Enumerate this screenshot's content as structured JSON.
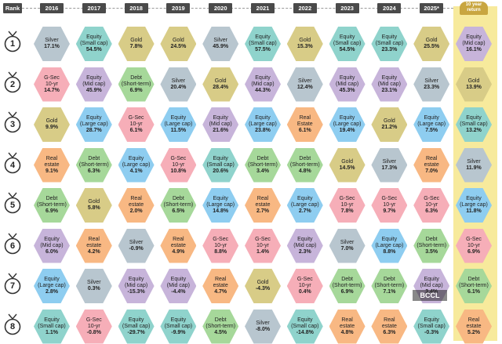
{
  "chart_data": {
    "type": "table",
    "header": {
      "rank_label": "Rank",
      "years": [
        "2016",
        "2017",
        "2018",
        "2019",
        "2020",
        "2021",
        "2022",
        "2023",
        "2024",
        "2025*"
      ],
      "last_label": "10 year return"
    },
    "ranks": [
      "1",
      "2",
      "3",
      "4",
      "5",
      "6",
      "7",
      "8"
    ],
    "colors": {
      "Silver": "#b8c6cf",
      "Equity (Small cap)": "#8fd3cc",
      "Gold": "#d8cc87",
      "G-Sec 10-yr": "#f6aeb8",
      "Equity (Mid cap)": "#c7b4da",
      "Debt (Short-term)": "#a6d89a",
      "Equity (Large cap)": "#8ecdf0",
      "Real estate": "#f8b883"
    },
    "grid": [
      [
        {
          "asset": "Silver",
          "value": "17.1%"
        },
        {
          "asset": "Equity\n(Small cap)",
          "key": "Equity (Small cap)",
          "value": "54.5%"
        },
        {
          "asset": "Gold",
          "value": "7.8%"
        },
        {
          "asset": "Gold",
          "value": "24.5%"
        },
        {
          "asset": "Silver",
          "value": "45.9%"
        },
        {
          "asset": "Equity\n(Small cap)",
          "key": "Equity (Small cap)",
          "value": "57.5%"
        },
        {
          "asset": "Gold",
          "value": "15.3%"
        },
        {
          "asset": "Equity\n(Small cap)",
          "key": "Equity (Small cap)",
          "value": "54.5%"
        },
        {
          "asset": "Equity\n(Small cap)",
          "key": "Equity (Small cap)",
          "value": "23.3%"
        },
        {
          "asset": "Gold",
          "value": "25.5%"
        },
        {
          "asset": "Equity\n(Mid cap)",
          "key": "Equity (Mid cap)",
          "value": "16.1%"
        }
      ],
      [
        {
          "asset": "G-Sec\n10-yr",
          "key": "G-Sec 10-yr",
          "value": "14.7%"
        },
        {
          "asset": "Equity\n(Mid cap)",
          "key": "Equity (Mid cap)",
          "value": "45.9%"
        },
        {
          "asset": "Debt\n(Short-term)",
          "key": "Debt (Short-term)",
          "value": "6.9%"
        },
        {
          "asset": "Silver",
          "value": "20.4%"
        },
        {
          "asset": "Gold",
          "value": "28.4%"
        },
        {
          "asset": "Equity\n(Mid cap)",
          "key": "Equity (Mid cap)",
          "value": "44.3%"
        },
        {
          "asset": "Silver",
          "value": "12.4%"
        },
        {
          "asset": "Equity\n(Mid cap)",
          "key": "Equity (Mid cap)",
          "value": "45.3%"
        },
        {
          "asset": "Equity\n(Mid cap)",
          "key": "Equity (Mid cap)",
          "value": "23.1%"
        },
        {
          "asset": "Silver",
          "value": "23.3%"
        },
        {
          "asset": "Gold",
          "value": "13.9%"
        }
      ],
      [
        {
          "asset": "Gold",
          "value": "9.9%"
        },
        {
          "asset": "Equity\n(Large cap)",
          "key": "Equity (Large cap)",
          "value": "28.7%"
        },
        {
          "asset": "G-Sec\n10-yr",
          "key": "G-Sec 10-yr",
          "value": "6.1%"
        },
        {
          "asset": "Equity\n(Large cap)",
          "key": "Equity (Large cap)",
          "value": "11.5%"
        },
        {
          "asset": "Equity\n(Mid cap)",
          "key": "Equity (Mid cap)",
          "value": "21.6%"
        },
        {
          "asset": "Equity\n(Large cap)",
          "key": "Equity (Large cap)",
          "value": "23.8%"
        },
        {
          "asset": "Real\nEstate",
          "key": "Real estate",
          "value": "6.1%"
        },
        {
          "asset": "Equity\n(Large cap)",
          "key": "Equity (Large cap)",
          "value": "19.4%"
        },
        {
          "asset": "Gold",
          "value": "21.2%"
        },
        {
          "asset": "Equity\n(Large cap)",
          "key": "Equity (Large cap)",
          "value": "7.5%"
        },
        {
          "asset": "Equity\n(Small cap)",
          "key": "Equity (Small cap)",
          "value": "13.2%"
        }
      ],
      [
        {
          "asset": "Real\nestate",
          "key": "Real estate",
          "value": "9.1%"
        },
        {
          "asset": "Debt\n(Short-term)",
          "key": "Debt (Short-term)",
          "value": "6.3%"
        },
        {
          "asset": "Equity\n(Large cap)",
          "key": "Equity (Large cap)",
          "value": "4.1%"
        },
        {
          "asset": "G-Sec\n10-yr",
          "key": "G-Sec 10-yr",
          "value": "10.8%"
        },
        {
          "asset": "Equity\n(Small cap)",
          "key": "Equity (Small cap)",
          "value": "20.6%"
        },
        {
          "asset": "Debt\n(Short-term)",
          "key": "Debt (Short-term)",
          "value": "3.4%"
        },
        {
          "asset": "Debt\n(Short-term)",
          "key": "Debt (Short-term)",
          "value": "4.8%"
        },
        {
          "asset": "Gold",
          "value": "14.5%"
        },
        {
          "asset": "Silver",
          "value": "17.3%"
        },
        {
          "asset": "Real\nestate",
          "key": "Real estate",
          "value": "7.0%"
        },
        {
          "asset": "Silver",
          "value": "11.9%"
        }
      ],
      [
        {
          "asset": "Debt\n(Short-term)",
          "key": "Debt (Short-term)",
          "value": "6.9%"
        },
        {
          "asset": "Gold",
          "value": "5.8%"
        },
        {
          "asset": "Real\nestate",
          "key": "Real estate",
          "value": "2.0%"
        },
        {
          "asset": "Debt\n(Short-term)",
          "key": "Debt (Short-term)",
          "value": "6.5%"
        },
        {
          "asset": "Equity\n(Large cap)",
          "key": "Equity (Large cap)",
          "value": "14.8%"
        },
        {
          "asset": "Real\nestate",
          "key": "Real estate",
          "value": "2.7%"
        },
        {
          "asset": "Equity\n(Large cap)",
          "key": "Equity (Large cap)",
          "value": "2.7%"
        },
        {
          "asset": "G-Sec\n10-yr",
          "key": "G-Sec 10-yr",
          "value": "7.8%"
        },
        {
          "asset": "G-Sec\n10-yr",
          "key": "G-Sec 10-yr",
          "value": "9.7%"
        },
        {
          "asset": "G-Sec\n10-yr",
          "key": "G-Sec 10-yr",
          "value": "6.3%"
        },
        {
          "asset": "Equity\n(Large cap)",
          "key": "Equity (Large cap)",
          "value": "11.8%"
        }
      ],
      [
        {
          "asset": "Equity\n(Mid cap)",
          "key": "Equity (Mid cap)",
          "value": "6.0%"
        },
        {
          "asset": "Real\nestate",
          "key": "Real estate",
          "value": "4.2%"
        },
        {
          "asset": "Silver",
          "value": "-0.9%"
        },
        {
          "asset": "Real\nestate",
          "key": "Real estate",
          "value": "4.9%"
        },
        {
          "asset": "G-Sec\n10-yr",
          "key": "G-Sec 10-yr",
          "value": "8.8%"
        },
        {
          "asset": "G-Sec\n10-yr",
          "key": "G-Sec 10-yr",
          "value": "1.4%"
        },
        {
          "asset": "Equity\n(Mid cap)",
          "key": "Equity (Mid cap)",
          "value": "2.3%"
        },
        {
          "asset": "Silver",
          "value": "7.0%"
        },
        {
          "asset": "Equity\n(Large cap)",
          "key": "Equity (Large cap)",
          "value": "8.8%"
        },
        {
          "asset": "Debt\n(Short-term)",
          "key": "Debt (Short-term)",
          "value": "3.5%"
        },
        {
          "asset": "G-Sec\n10-yr",
          "key": "G-Sec 10-yr",
          "value": "6.9%"
        }
      ],
      [
        {
          "asset": "Equity\n(Large cap)",
          "key": "Equity (Large cap)",
          "value": "2.8%"
        },
        {
          "asset": "Silver",
          "value": "0.3%"
        },
        {
          "asset": "Equity\n(Mid cap)",
          "key": "Equity (Mid cap)",
          "value": "-15.3%"
        },
        {
          "asset": "Equity\n(Mid cap)",
          "key": "Equity (Mid cap)",
          "value": "-4.4%"
        },
        {
          "asset": "Real\nestate",
          "key": "Real estate",
          "value": "4.7%"
        },
        {
          "asset": "Gold",
          "value": "-4.3%"
        },
        {
          "asset": "G-Sec\n10-yr",
          "key": "G-Sec 10-yr",
          "value": "0.4%"
        },
        {
          "asset": "Debt\n(Short-term)",
          "key": "Debt (Short-term)",
          "value": "6.9%"
        },
        {
          "asset": "Debt\n(Short-term)",
          "key": "Debt (Short-term)",
          "value": "7.1%"
        },
        {
          "asset": "Equity\n(Mid cap)",
          "key": "Equity (Mid cap)",
          "value": "3.4%"
        },
        {
          "asset": "Debt\n(Short-term)",
          "key": "Debt (Short-term)",
          "value": "6.1%"
        }
      ],
      [
        {
          "asset": "Equity\n(Small cap)",
          "key": "Equity (Small cap)",
          "value": "1.1%"
        },
        {
          "asset": "G-Sec\n10-yr",
          "key": "G-Sec 10-yr",
          "value": "-0.8%"
        },
        {
          "asset": "Equity\n(Small cap)",
          "key": "Equity (Small cap)",
          "value": "-29.7%"
        },
        {
          "asset": "Equity\n(Small cap)",
          "key": "Equity (Small cap)",
          "value": "-9.9%"
        },
        {
          "asset": "Debt\n(Short-term)",
          "key": "Debt (Short-term)",
          "value": "4.5%"
        },
        {
          "asset": "Silver",
          "value": "-8.0%"
        },
        {
          "asset": "Equity\n(Small cap)",
          "key": "Equity (Small cap)",
          "value": "-14.8%"
        },
        {
          "asset": "Real\nestate",
          "key": "Real estate",
          "value": "4.8%"
        },
        {
          "asset": "Real\nestate",
          "key": "Real estate",
          "value": "6.3%"
        },
        {
          "asset": "Equity\n(Small cap)",
          "key": "Equity (Small cap)",
          "value": "-0.3%"
        },
        {
          "asset": "Real\nestate",
          "key": "Real estate",
          "value": "5.2%"
        }
      ]
    ]
  },
  "watermark": "BCCL"
}
